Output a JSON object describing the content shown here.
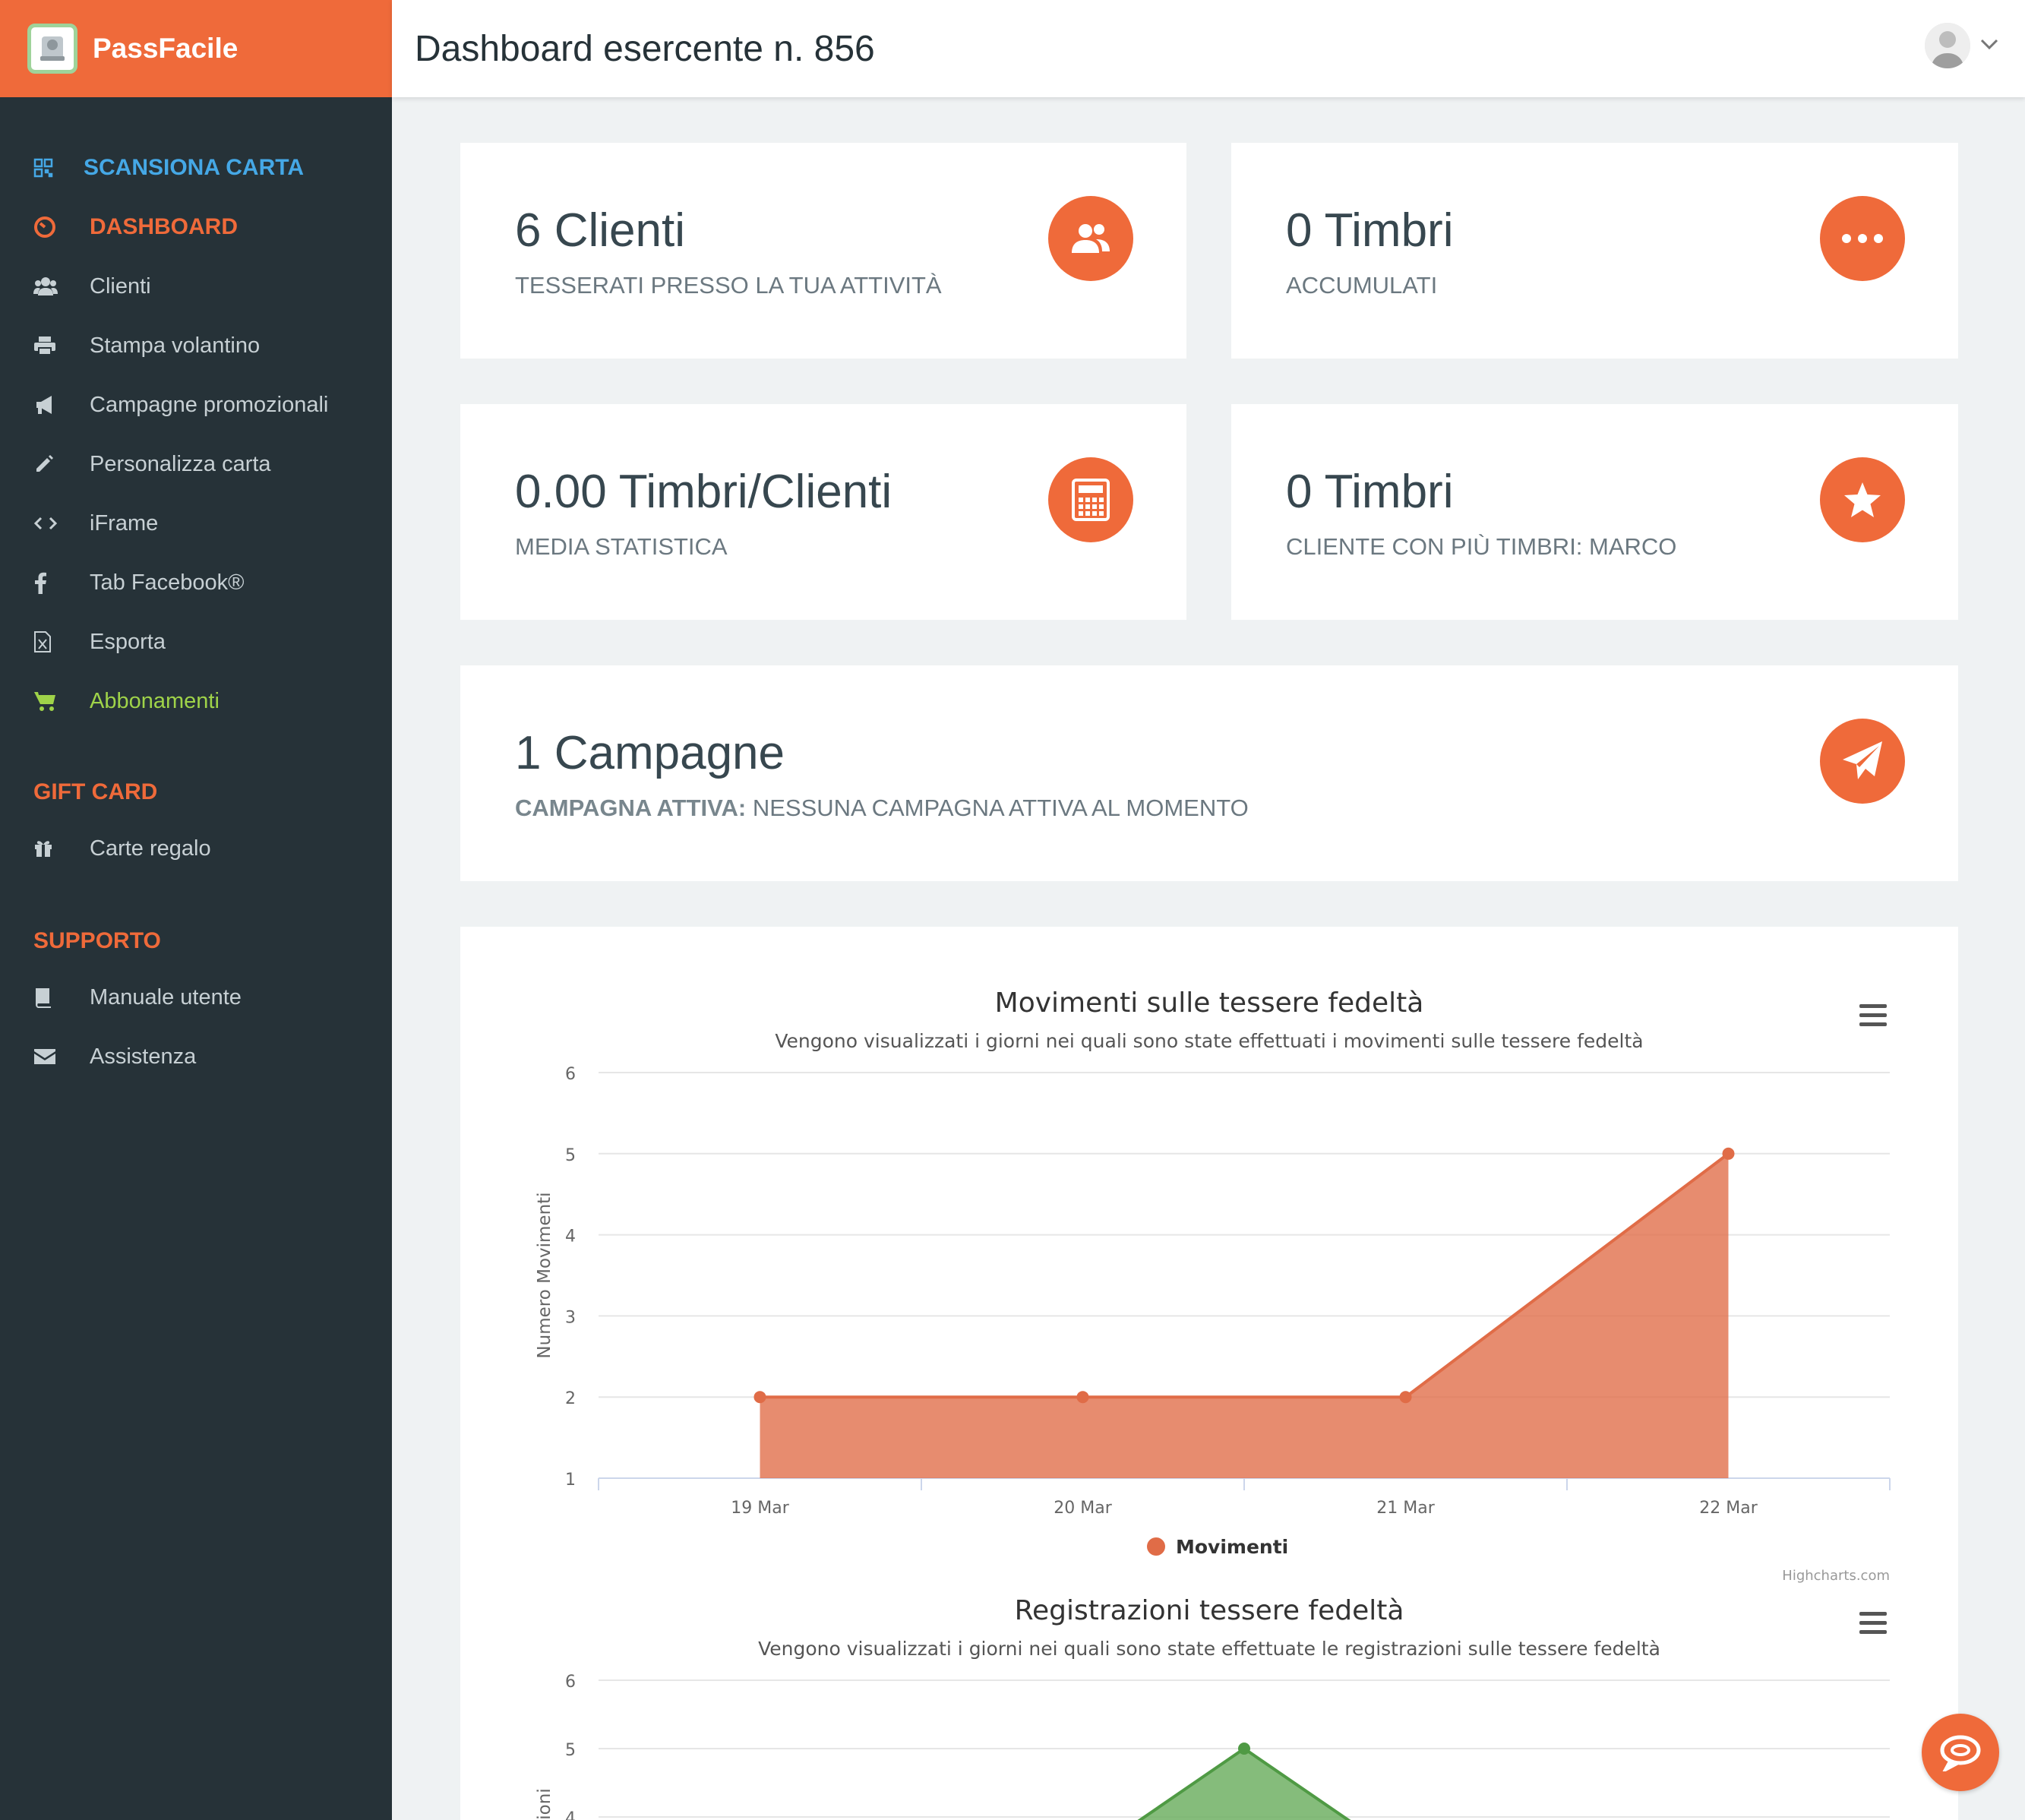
{
  "brand": {
    "name": "PassFacile"
  },
  "header": {
    "title": "Dashboard esercente n. 856"
  },
  "sidebar": {
    "scan": "SCANSIONA CARTA",
    "items": [
      {
        "label": "DASHBOARD",
        "icon": "dashboard-icon"
      },
      {
        "label": "Clienti",
        "icon": "users-icon"
      },
      {
        "label": "Stampa volantino",
        "icon": "print-icon"
      },
      {
        "label": "Campagne promozionali",
        "icon": "megaphone-icon"
      },
      {
        "label": "Personalizza carta",
        "icon": "pencil-icon"
      },
      {
        "label": "iFrame",
        "icon": "code-icon"
      },
      {
        "label": "Tab Facebook®",
        "icon": "facebook-icon"
      },
      {
        "label": "Esporta",
        "icon": "excel-icon"
      },
      {
        "label": "Abbonamenti",
        "icon": "cart-icon"
      }
    ],
    "gift_title": "GIFT CARD",
    "gift_items": [
      {
        "label": "Carte regalo",
        "icon": "gift-icon"
      }
    ],
    "support_title": "SUPPORTO",
    "support_items": [
      {
        "label": "Manuale utente",
        "icon": "book-icon"
      },
      {
        "label": "Assistenza",
        "icon": "envelope-icon"
      }
    ]
  },
  "stats": {
    "clients": {
      "value": "6 Clienti",
      "sub": "TESSERATI PRESSO LA TUA ATTIVITÀ",
      "icon": "users-icon"
    },
    "stamps": {
      "value": "0 Timbri",
      "sub": "ACCUMULATI",
      "icon": "ellipsis-icon"
    },
    "average": {
      "value": "0.00 Timbri/Clienti",
      "sub": "MEDIA STATISTICA",
      "icon": "calculator-icon"
    },
    "top_client": {
      "value": "0 Timbri",
      "sub": "CLIENTE CON PIÙ TIMBRI: MARCO",
      "icon": "star-icon"
    },
    "campaigns": {
      "value": "1 Campagne",
      "sub_label": "CAMPAGNA ATTIVA:",
      "sub": "NESSUNA CAMPAGNA ATTIVA AL MOMENTO",
      "icon": "paper-plane-icon"
    }
  },
  "chart_data": [
    {
      "type": "area",
      "title": "Movimenti sulle tessere fedeltà",
      "subtitle": "Vengono visualizzati i giorni nei quali sono state effettuati i movimenti sulle tessere fedeltà",
      "ylabel": "Numero Movimenti",
      "xlabel": "",
      "categories": [
        "19 Mar",
        "20 Mar",
        "21 Mar",
        "22 Mar"
      ],
      "series": [
        {
          "name": "Movimenti",
          "values": [
            2,
            2,
            2,
            5
          ],
          "color": "#e06c47"
        }
      ],
      "ylim": [
        1,
        6
      ],
      "yticks": [
        1,
        2,
        3,
        4,
        5,
        6
      ],
      "credits": "Highcharts.com",
      "legend": "bottom-center",
      "grid": true
    },
    {
      "type": "area",
      "title": "Registrazioni tessere fedeltà",
      "subtitle": "Vengono visualizzati i giorni nei quali sono state effettuate le registrazioni sulle tessere fedeltà",
      "ylabel_visible": "ioni",
      "yticks": [
        4,
        5,
        6
      ],
      "series": [
        {
          "values": [
            5
          ],
          "color": "#6aad5e"
        }
      ],
      "grid": true
    }
  ]
}
